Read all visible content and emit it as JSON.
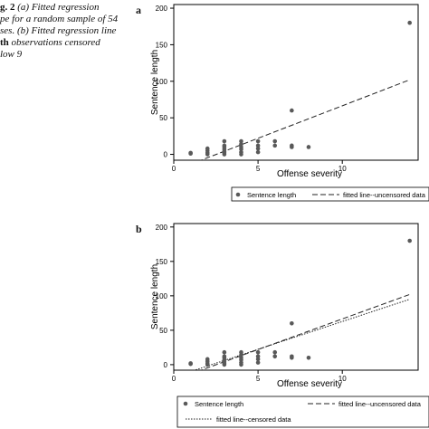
{
  "caption": {
    "lines": [
      {
        "bold": "g. 2",
        "text": "  (a) Fitted regression"
      },
      {
        "bold": "",
        "text": "pe for a random sample of 54"
      },
      {
        "bold": "",
        "text": "ses. (b) Fitted regression line"
      },
      {
        "bold": "th",
        "text": " observations censored"
      },
      {
        "bold": "",
        "text": "low 9"
      }
    ]
  },
  "chart_data": [
    {
      "panel": "a",
      "type": "scatter",
      "xlabel": "Offense severity",
      "ylabel": "Sentence length",
      "xlim": [
        0,
        14.5
      ],
      "ylim": [
        -8,
        205
      ],
      "xticks": [
        0,
        5,
        10
      ],
      "yticks": [
        0,
        50,
        100,
        150,
        200
      ],
      "grid": false,
      "legend_position": "bottom",
      "points": [
        [
          1,
          2
        ],
        [
          1,
          1
        ],
        [
          2,
          0
        ],
        [
          2,
          2
        ],
        [
          2,
          5
        ],
        [
          2,
          8
        ],
        [
          3,
          0
        ],
        [
          3,
          2
        ],
        [
          3,
          4
        ],
        [
          3,
          7
        ],
        [
          3,
          10
        ],
        [
          3,
          12
        ],
        [
          3,
          18
        ],
        [
          4,
          0
        ],
        [
          4,
          3
        ],
        [
          4,
          7
        ],
        [
          4,
          10
        ],
        [
          4,
          14
        ],
        [
          4,
          18
        ],
        [
          5,
          3
        ],
        [
          5,
          8
        ],
        [
          5,
          12
        ],
        [
          5,
          18
        ],
        [
          6,
          12
        ],
        [
          6,
          18
        ],
        [
          7,
          10
        ],
        [
          7,
          12
        ],
        [
          7,
          60
        ],
        [
          8,
          10
        ],
        [
          14,
          180
        ]
      ],
      "series": [
        {
          "name": "Sentence length",
          "kind": "points",
          "color": "#595959"
        },
        {
          "name": "fitted line--uncensored data",
          "kind": "line",
          "dash": "long",
          "x": [
            1.4,
            14
          ],
          "y": [
            -10,
            102
          ]
        }
      ]
    },
    {
      "panel": "b",
      "type": "scatter",
      "xlabel": "Offense severity",
      "ylabel": "Sentence length",
      "xlim": [
        0,
        14.5
      ],
      "ylim": [
        -8,
        205
      ],
      "xticks": [
        0,
        5,
        10
      ],
      "yticks": [
        0,
        50,
        100,
        150,
        200
      ],
      "grid": false,
      "legend_position": "bottom",
      "points": [
        [
          1,
          2
        ],
        [
          1,
          1
        ],
        [
          2,
          0
        ],
        [
          2,
          2
        ],
        [
          2,
          5
        ],
        [
          2,
          8
        ],
        [
          3,
          0
        ],
        [
          3,
          2
        ],
        [
          3,
          4
        ],
        [
          3,
          7
        ],
        [
          3,
          10
        ],
        [
          3,
          12
        ],
        [
          3,
          18
        ],
        [
          4,
          0
        ],
        [
          4,
          3
        ],
        [
          4,
          7
        ],
        [
          4,
          10
        ],
        [
          4,
          14
        ],
        [
          4,
          18
        ],
        [
          5,
          3
        ],
        [
          5,
          8
        ],
        [
          5,
          12
        ],
        [
          5,
          18
        ],
        [
          6,
          12
        ],
        [
          6,
          18
        ],
        [
          7,
          10
        ],
        [
          7,
          12
        ],
        [
          7,
          60
        ],
        [
          8,
          10
        ],
        [
          14,
          180
        ]
      ],
      "series": [
        {
          "name": "Sentence length",
          "kind": "points",
          "color": "#595959"
        },
        {
          "name": "fitted line--uncensored data",
          "kind": "line",
          "dash": "long",
          "x": [
            1.4,
            14
          ],
          "y": [
            -10,
            102
          ]
        },
        {
          "name": "fitted line--censored data",
          "kind": "line",
          "dash": "dot",
          "x": [
            1,
            14
          ],
          "y": [
            -10,
            95
          ]
        }
      ]
    }
  ]
}
